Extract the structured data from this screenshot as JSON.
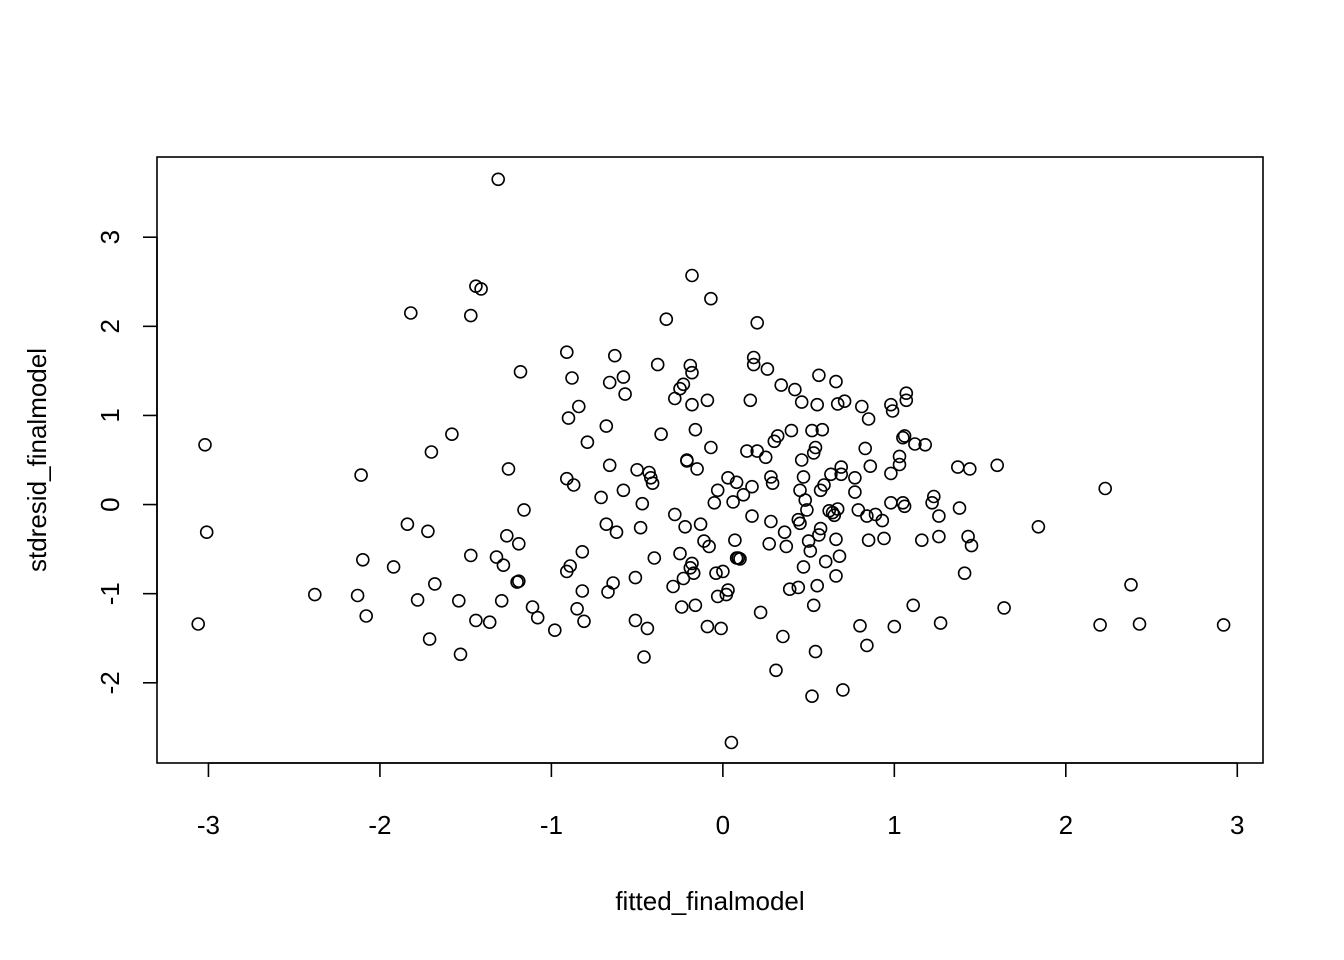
{
  "chart_data": {
    "type": "scatter",
    "title": "",
    "xlabel": "fitted_finalmodel",
    "ylabel": "stdresid_finalmodel",
    "xlim": [
      -3.3,
      3.15
    ],
    "ylim": [
      -2.9,
      3.9
    ],
    "xticks": [
      -3,
      -2,
      -1,
      0,
      1,
      2,
      3
    ],
    "yticks": [
      -2,
      -1,
      0,
      1,
      2,
      3
    ],
    "xtick_labels": [
      "-3",
      "-2",
      "-1",
      "0",
      "1",
      "2",
      "3"
    ],
    "ytick_labels": [
      "-2",
      "-1",
      "0",
      "1",
      "2",
      "3"
    ],
    "grid": false,
    "marker": "open-circle",
    "points": [
      [
        -3.06,
        -1.34
      ],
      [
        -3.02,
        0.67
      ],
      [
        -3.01,
        -0.31
      ],
      [
        -2.38,
        -1.01
      ],
      [
        -2.13,
        -1.02
      ],
      [
        -2.11,
        0.33
      ],
      [
        -2.1,
        -0.62
      ],
      [
        -2.08,
        -1.25
      ],
      [
        -1.92,
        -0.7
      ],
      [
        -1.84,
        -0.22
      ],
      [
        -1.82,
        2.15
      ],
      [
        -1.78,
        -1.07
      ],
      [
        -1.72,
        -0.3
      ],
      [
        -1.71,
        -1.51
      ],
      [
        -1.7,
        0.59
      ],
      [
        -1.68,
        -0.89
      ],
      [
        -1.58,
        0.79
      ],
      [
        -1.54,
        -1.08
      ],
      [
        -1.53,
        -1.68
      ],
      [
        -1.47,
        2.12
      ],
      [
        -1.47,
        -0.57
      ],
      [
        -1.44,
        -1.3
      ],
      [
        -1.44,
        2.45
      ],
      [
        -1.41,
        2.42
      ],
      [
        -1.36,
        -1.32
      ],
      [
        -1.32,
        -0.59
      ],
      [
        -1.31,
        3.65
      ],
      [
        -1.29,
        -1.08
      ],
      [
        -1.28,
        -0.68
      ],
      [
        -1.26,
        -0.35
      ],
      [
        -1.25,
        0.4
      ],
      [
        -1.2,
        -0.87
      ],
      [
        -1.19,
        -0.44
      ],
      [
        -1.19,
        -0.86
      ],
      [
        -1.18,
        1.49
      ],
      [
        -1.16,
        -0.06
      ],
      [
        -1.11,
        -1.15
      ],
      [
        -1.08,
        -1.27
      ],
      [
        -0.98,
        -1.41
      ],
      [
        -0.91,
        1.71
      ],
      [
        -0.91,
        0.29
      ],
      [
        -0.91,
        -0.75
      ],
      [
        -0.9,
        0.97
      ],
      [
        -0.89,
        -0.69
      ],
      [
        -0.88,
        1.42
      ],
      [
        -0.87,
        0.22
      ],
      [
        -0.85,
        -1.17
      ],
      [
        -0.84,
        1.1
      ],
      [
        -0.82,
        -0.53
      ],
      [
        -0.82,
        -0.97
      ],
      [
        -0.81,
        -1.31
      ],
      [
        -0.79,
        0.7
      ],
      [
        -0.71,
        0.08
      ],
      [
        -0.68,
        -0.22
      ],
      [
        -0.68,
        0.88
      ],
      [
        -0.67,
        -0.98
      ],
      [
        -0.66,
        1.37
      ],
      [
        -0.66,
        0.44
      ],
      [
        -0.64,
        -0.88
      ],
      [
        -0.63,
        1.67
      ],
      [
        -0.62,
        -0.31
      ],
      [
        -0.58,
        1.43
      ],
      [
        -0.58,
        0.16
      ],
      [
        -0.57,
        1.24
      ],
      [
        -0.51,
        -0.82
      ],
      [
        -0.51,
        -1.3
      ],
      [
        -0.5,
        0.39
      ],
      [
        -0.48,
        -0.26
      ],
      [
        -0.47,
        0.01
      ],
      [
        -0.46,
        -1.71
      ],
      [
        -0.44,
        -1.39
      ],
      [
        -0.43,
        0.36
      ],
      [
        -0.42,
        0.3
      ],
      [
        -0.41,
        0.24
      ],
      [
        -0.4,
        -0.6
      ],
      [
        -0.38,
        1.57
      ],
      [
        -0.36,
        0.79
      ],
      [
        -0.33,
        2.08
      ],
      [
        -0.29,
        -0.92
      ],
      [
        -0.28,
        -0.11
      ],
      [
        -0.28,
        1.19
      ],
      [
        -0.25,
        1.3
      ],
      [
        -0.25,
        -0.55
      ],
      [
        -0.24,
        -1.15
      ],
      [
        -0.23,
        -0.83
      ],
      [
        -0.23,
        1.35
      ],
      [
        -0.22,
        -0.25
      ],
      [
        -0.21,
        0.5
      ],
      [
        -0.21,
        0.49
      ],
      [
        -0.19,
        1.56
      ],
      [
        -0.19,
        -0.71
      ],
      [
        -0.18,
        1.48
      ],
      [
        -0.18,
        -0.66
      ],
      [
        -0.18,
        2.57
      ],
      [
        -0.18,
        1.12
      ],
      [
        -0.17,
        -0.77
      ],
      [
        -0.16,
        0.84
      ],
      [
        -0.16,
        -1.13
      ],
      [
        -0.15,
        0.4
      ],
      [
        -0.13,
        -0.22
      ],
      [
        -0.11,
        -0.41
      ],
      [
        -0.09,
        1.17
      ],
      [
        -0.09,
        -1.37
      ],
      [
        -0.08,
        -0.47
      ],
      [
        -0.07,
        2.31
      ],
      [
        -0.07,
        0.64
      ],
      [
        -0.05,
        0.02
      ],
      [
        -0.04,
        -0.77
      ],
      [
        -0.03,
        0.16
      ],
      [
        -0.03,
        -1.03
      ],
      [
        -0.01,
        -1.39
      ],
      [
        0.0,
        -0.75
      ],
      [
        0.02,
        -1.01
      ],
      [
        0.03,
        0.3
      ],
      [
        0.03,
        -0.96
      ],
      [
        0.05,
        -2.67
      ],
      [
        0.06,
        0.03
      ],
      [
        0.07,
        -0.4
      ],
      [
        0.08,
        -0.6
      ],
      [
        0.08,
        0.25
      ],
      [
        0.09,
        -0.6
      ],
      [
        0.1,
        -0.61
      ],
      [
        0.12,
        0.11
      ],
      [
        0.14,
        0.6
      ],
      [
        0.16,
        1.17
      ],
      [
        0.17,
        -0.13
      ],
      [
        0.17,
        0.2
      ],
      [
        0.18,
        1.57
      ],
      [
        0.18,
        1.65
      ],
      [
        0.2,
        2.04
      ],
      [
        0.2,
        0.6
      ],
      [
        0.22,
        -1.21
      ],
      [
        0.25,
        0.53
      ],
      [
        0.26,
        1.52
      ],
      [
        0.27,
        -0.44
      ],
      [
        0.28,
        -0.19
      ],
      [
        0.28,
        0.31
      ],
      [
        0.29,
        0.24
      ],
      [
        0.3,
        0.71
      ],
      [
        0.31,
        -1.86
      ],
      [
        0.32,
        0.77
      ],
      [
        0.34,
        1.34
      ],
      [
        0.35,
        -1.48
      ],
      [
        0.36,
        -0.31
      ],
      [
        0.37,
        -0.47
      ],
      [
        0.39,
        -0.95
      ],
      [
        0.4,
        0.83
      ],
      [
        0.42,
        1.29
      ],
      [
        0.44,
        -0.17
      ],
      [
        0.44,
        -0.93
      ],
      [
        0.45,
        -0.21
      ],
      [
        0.45,
        0.16
      ],
      [
        0.46,
        0.5
      ],
      [
        0.46,
        1.15
      ],
      [
        0.47,
        -0.7
      ],
      [
        0.47,
        0.31
      ],
      [
        0.48,
        0.05
      ],
      [
        0.49,
        -0.06
      ],
      [
        0.5,
        -0.41
      ],
      [
        0.51,
        -0.52
      ],
      [
        0.52,
        0.83
      ],
      [
        0.52,
        -2.15
      ],
      [
        0.53,
        0.58
      ],
      [
        0.53,
        -1.13
      ],
      [
        0.54,
        -1.65
      ],
      [
        0.54,
        0.64
      ],
      [
        0.55,
        -0.91
      ],
      [
        0.55,
        1.12
      ],
      [
        0.56,
        1.45
      ],
      [
        0.56,
        -0.34
      ],
      [
        0.57,
        0.16
      ],
      [
        0.57,
        -0.27
      ],
      [
        0.58,
        0.84
      ],
      [
        0.59,
        0.22
      ],
      [
        0.6,
        -0.64
      ],
      [
        0.62,
        -0.07
      ],
      [
        0.63,
        0.34
      ],
      [
        0.64,
        -0.09
      ],
      [
        0.65,
        -0.12
      ],
      [
        0.66,
        -0.8
      ],
      [
        0.66,
        -0.39
      ],
      [
        0.66,
        1.38
      ],
      [
        0.67,
        -0.05
      ],
      [
        0.67,
        1.13
      ],
      [
        0.68,
        -0.58
      ],
      [
        0.69,
        0.42
      ],
      [
        0.69,
        0.34
      ],
      [
        0.7,
        -2.08
      ],
      [
        0.71,
        1.16
      ],
      [
        0.77,
        0.3
      ],
      [
        0.77,
        0.14
      ],
      [
        0.79,
        -0.06
      ],
      [
        0.8,
        -1.36
      ],
      [
        0.81,
        1.1
      ],
      [
        0.83,
        0.63
      ],
      [
        0.84,
        -0.13
      ],
      [
        0.84,
        -1.58
      ],
      [
        0.85,
        0.96
      ],
      [
        0.85,
        -0.4
      ],
      [
        0.86,
        0.43
      ],
      [
        0.89,
        -0.11
      ],
      [
        0.93,
        -0.18
      ],
      [
        0.94,
        -0.38
      ],
      [
        0.98,
        0.02
      ],
      [
        0.98,
        0.35
      ],
      [
        0.98,
        1.12
      ],
      [
        0.99,
        1.05
      ],
      [
        1.0,
        -1.37
      ],
      [
        1.03,
        0.54
      ],
      [
        1.03,
        0.45
      ],
      [
        1.05,
        0.75
      ],
      [
        1.05,
        0.02
      ],
      [
        1.06,
        -0.02
      ],
      [
        1.06,
        0.77
      ],
      [
        1.07,
        1.17
      ],
      [
        1.07,
        1.25
      ],
      [
        1.11,
        -1.13
      ],
      [
        1.12,
        0.68
      ],
      [
        1.16,
        -0.4
      ],
      [
        1.18,
        0.67
      ],
      [
        1.22,
        0.02
      ],
      [
        1.23,
        0.09
      ],
      [
        1.26,
        -0.13
      ],
      [
        1.26,
        -0.36
      ],
      [
        1.27,
        -1.33
      ],
      [
        1.37,
        0.42
      ],
      [
        1.38,
        -0.04
      ],
      [
        1.41,
        -0.77
      ],
      [
        1.43,
        -0.36
      ],
      [
        1.44,
        0.4
      ],
      [
        1.45,
        -0.46
      ],
      [
        1.6,
        0.44
      ],
      [
        1.64,
        -1.16
      ],
      [
        1.84,
        -0.25
      ],
      [
        2.2,
        -1.35
      ],
      [
        2.23,
        0.18
      ],
      [
        2.38,
        -0.9
      ],
      [
        2.43,
        -1.34
      ],
      [
        2.92,
        -1.35
      ]
    ]
  }
}
